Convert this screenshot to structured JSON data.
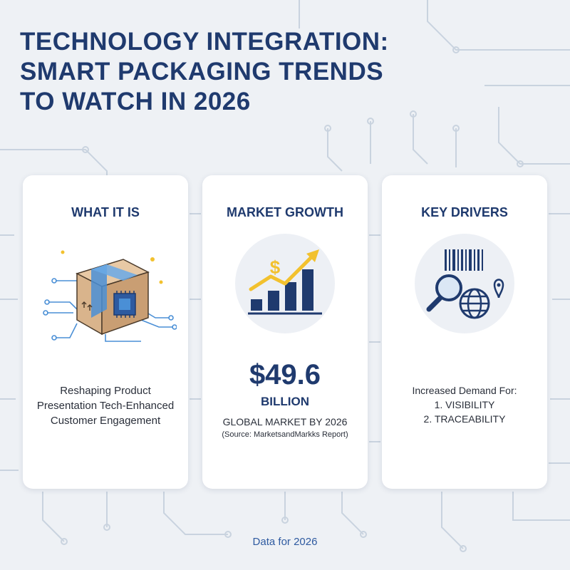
{
  "title": {
    "line1": "TECHNOLOGY INTEGRATION:",
    "line2": "SMART PACKAGING TRENDS",
    "line3": "TO WATCH IN 2026"
  },
  "colors": {
    "navy": "#1f3a6e",
    "accent_blue": "#2e5aa0",
    "gold": "#f2c12e",
    "box_tan": "#d9b48c"
  },
  "cards": [
    {
      "heading": "WHAT IT IS",
      "icon": "smart-package-icon",
      "lines": [
        "Reshaping Product",
        "Presentation Tech-Enhanced",
        "Customer Engagement"
      ]
    },
    {
      "heading": "MARKET GROWTH",
      "icon": "growth-chart-icon",
      "symbol": "$",
      "value": "$49.6",
      "unit": "BILLION",
      "label": "GLOBAL MARKET BY 2026",
      "source": "(Source: MarketsandMarkks Report)"
    },
    {
      "heading": "KEY DRIVERS",
      "icon": "traceability-icon",
      "intro": "Increased Demand For:",
      "items": [
        "1. VISIBILITY",
        "2. TRACEABILITY"
      ]
    }
  ],
  "footer": "Data for 2026"
}
